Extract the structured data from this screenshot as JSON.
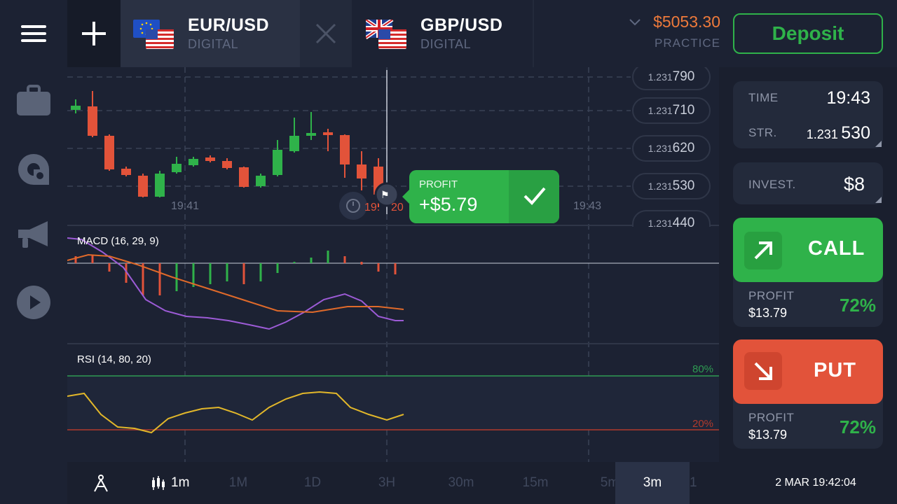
{
  "tabs": [
    {
      "symbol": "EUR/USD",
      "kind": "DIGITAL",
      "flag": "eu-us-flags"
    },
    {
      "symbol": "GBP/USD",
      "kind": "DIGITAL",
      "flag": "gb-us-flags"
    }
  ],
  "account": {
    "balance": "$5053.30",
    "mode": "PRACTICE"
  },
  "deposit_label": "Deposit",
  "prices": [
    {
      "prefix": "1.231",
      "suffix": "790"
    },
    {
      "prefix": "1.231",
      "suffix": "710"
    },
    {
      "prefix": "1.231",
      "suffix": "620"
    },
    {
      "prefix": "1.231",
      "suffix": "530"
    },
    {
      "prefix": "1.231",
      "suffix": "440"
    }
  ],
  "time_axis": {
    "t1": "19:41",
    "t2": "19:",
    "t2b": "20",
    "t3": "19:43"
  },
  "profit_popup": {
    "label": "PROFIT",
    "value": "+$5.79"
  },
  "indicators": {
    "macd": {
      "name": "MACD",
      "params": "(16,  29,  9)"
    },
    "rsi": {
      "name": "RSI",
      "params": "(14,  80,  20)",
      "upper": "80%",
      "lower": "20%"
    }
  },
  "trade": {
    "time_label": "TIME",
    "time_value": "19:43",
    "strike_label": "STR.",
    "strike_prefix": "1.231",
    "strike_suffix": "530",
    "invest_label": "INVEST.",
    "invest_value": "$8",
    "call_label": "CALL",
    "put_label": "PUT",
    "call_profit_label": "PROFIT",
    "call_profit_value": "$13.79",
    "call_percent": "72%",
    "put_profit_label": "PROFIT",
    "put_profit_value": "$13.79",
    "put_percent": "72%"
  },
  "timeframes": [
    {
      "label": "1M"
    },
    {
      "label": "1D"
    },
    {
      "label": "3H"
    },
    {
      "label": "30m"
    },
    {
      "label": "15m"
    },
    {
      "label": "5m"
    },
    {
      "label": "3m"
    },
    {
      "label": "1m"
    }
  ],
  "chart_interval": "1m",
  "datetime": "2 MAR 19:42:04",
  "colors": {
    "up": "#2fb24a",
    "down": "#e2533a",
    "accent": "#ee7a3b"
  }
}
